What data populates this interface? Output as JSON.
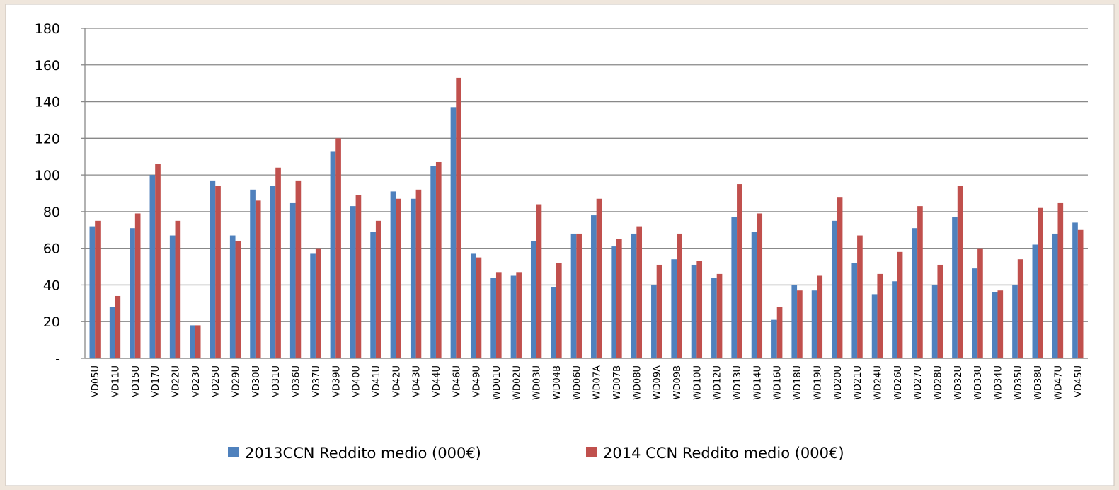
{
  "chart_data": {
    "type": "bar",
    "categories": [
      "VD05U",
      "VD11U",
      "VD15U",
      "VD17U",
      "VD22U",
      "VD23U",
      "VD25U",
      "VD29U",
      "VD30U",
      "VD31U",
      "VD36U",
      "VD37U",
      "VD39U",
      "VD40U",
      "VD41U",
      "VD42U",
      "VD43U",
      "VD44U",
      "VD46U",
      "VD49U",
      "WD01U",
      "WD02U",
      "WD03U",
      "WD04B",
      "WD06U",
      "WD07A",
      "WD07B",
      "WD08U",
      "WD09A",
      "WD09B",
      "WD10U",
      "WD12U",
      "WD13U",
      "WD14U",
      "WD16U",
      "WD18U",
      "WD19U",
      "WD20U",
      "WD21U",
      "WD24U",
      "WD26U",
      "WD27U",
      "WD28U",
      "WD32U",
      "WD33U",
      "WD34U",
      "WD35U",
      "WD38U",
      "WD47U",
      "VD45U"
    ],
    "series": [
      {
        "name": "2013CCN Reddito medio (000€)",
        "color": "#4f81bd",
        "values": [
          72,
          28,
          71,
          100,
          67,
          18,
          97,
          67,
          92,
          94,
          85,
          57,
          113,
          83,
          69,
          91,
          87,
          105,
          137,
          57,
          44,
          45,
          64,
          39,
          68,
          78,
          61,
          68,
          40,
          54,
          51,
          44,
          77,
          69,
          21,
          40,
          37,
          75,
          52,
          35,
          42,
          71,
          40,
          77,
          49,
          36,
          40,
          62,
          68,
          74
        ]
      },
      {
        "name": "2014 CCN Reddito medio (000€)",
        "color": "#c0504d",
        "values": [
          75,
          34,
          79,
          106,
          75,
          18,
          94,
          64,
          86,
          104,
          97,
          60,
          120,
          89,
          75,
          87,
          92,
          107,
          153,
          55,
          47,
          47,
          84,
          52,
          68,
          87,
          65,
          72,
          51,
          68,
          53,
          46,
          95,
          79,
          28,
          37,
          45,
          88,
          67,
          46,
          58,
          83,
          51,
          94,
          60,
          37,
          54,
          82,
          85,
          70
        ]
      }
    ],
    "ylim": [
      0,
      180
    ],
    "yticks": [
      {
        "value": 0,
        "label": "-"
      },
      20,
      40,
      60,
      80,
      100,
      120,
      140,
      160,
      180
    ],
    "grid": true,
    "legend": "bottom"
  }
}
